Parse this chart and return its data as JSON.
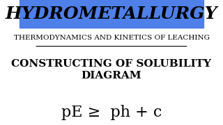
{
  "title": "HYDROMETALLURGY",
  "subtitle": "THERMODYNAMICS AND KINETICS OF LEACHING",
  "heading": "CONSTRUCTING OF SOLUBILITY\nDIAGRAM",
  "formula": "pE ≥  ph + c",
  "title_bg_color": "#4f7fe8",
  "title_text_color": "#000000",
  "bg_color": "#ffffff",
  "subtitle_color": "#000000",
  "heading_color": "#000000",
  "formula_color": "#000000",
  "title_fontsize": 18,
  "subtitle_fontsize": 7.5,
  "heading_fontsize": 11,
  "formula_fontsize": 16
}
